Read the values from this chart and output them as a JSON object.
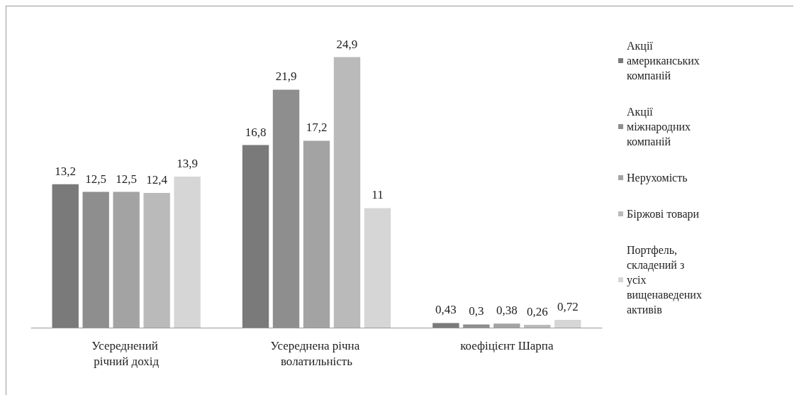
{
  "chart_data": {
    "type": "bar",
    "categories": [
      "Усереднений річний дохід",
      "Усереднена річна волатильність",
      "коефіцієнт Шарпа"
    ],
    "series": [
      {
        "name": "Акції американських компаній",
        "color": "#7a7a7a",
        "values": [
          13.2,
          16.8,
          0.43
        ],
        "value_labels": [
          "13,2",
          "16,8",
          "0,43"
        ]
      },
      {
        "name": "Акції міжнародних компаній",
        "color": "#8e8e8e",
        "values": [
          12.5,
          21.9,
          0.3
        ],
        "value_labels": [
          "12,5",
          "21,9",
          "0,3"
        ]
      },
      {
        "name": "Нерухомість",
        "color": "#a3a3a3",
        "values": [
          12.5,
          17.2,
          0.38
        ],
        "value_labels": [
          "12,5",
          "17,2",
          "0,38"
        ]
      },
      {
        "name": "Біржові товари",
        "color": "#bababa",
        "values": [
          12.4,
          24.9,
          0.26
        ],
        "value_labels": [
          "12,4",
          "24,9",
          "0,26"
        ]
      },
      {
        "name": "Портфель, складений з усіх вищенаведених активів",
        "color": "#d6d6d6",
        "values": [
          13.9,
          11,
          0.72
        ],
        "value_labels": [
          "13,9",
          "11",
          "0,72"
        ]
      }
    ],
    "legend": "right"
  }
}
